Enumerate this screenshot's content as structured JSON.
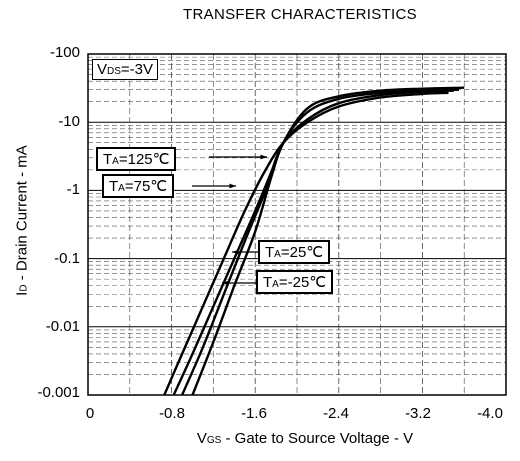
{
  "chart_data": {
    "type": "line",
    "title": "TRANSFER CHARACTERISTICS",
    "xlabel_prefix": "V",
    "xlabel_sub": "GS",
    "xlabel_rest": " - Gate to Source Voltage - V",
    "ylabel_prefix": "I",
    "ylabel_sub": "D",
    "ylabel_rest": " - Drain Current - mA",
    "condition_prefix": "V",
    "condition_sub": "DS",
    "condition_rest": "=-3V",
    "y_scale": "log",
    "xlim": [
      0,
      -4.0
    ],
    "ylim": [
      -0.001,
      -100
    ],
    "x_ticks": [
      "0",
      "-0.8",
      "-1.6",
      "-2.4",
      "-3.2",
      "-4.0"
    ],
    "y_ticks": [
      "-100",
      "-10",
      "-1",
      "-0.1",
      "-0.01",
      "-0.001"
    ],
    "grid": true,
    "series": [
      {
        "name": "TA=125℃",
        "label_prefix": "T",
        "label_sub": "A",
        "label_rest": "=125℃",
        "x": [
          -0.73,
          -0.9,
          -1.1,
          -1.3,
          -1.5,
          -1.7,
          -1.87,
          -2.1,
          -2.4,
          -2.8,
          -3.2,
          -3.45
        ],
        "y": [
          -0.001,
          -0.004,
          -0.02,
          -0.1,
          -0.5,
          -2.0,
          -5.0,
          -10.0,
          -17.0,
          -23.0,
          -26.0,
          -27.0
        ]
      },
      {
        "name": "TA=75℃",
        "label_prefix": "T",
        "label_sub": "A",
        "label_rest": "=75℃",
        "x": [
          -0.82,
          -1.0,
          -1.2,
          -1.4,
          -1.6,
          -1.75,
          -1.87,
          -2.1,
          -2.4,
          -2.8,
          -3.2,
          -3.5
        ],
        "y": [
          -0.001,
          -0.004,
          -0.02,
          -0.1,
          -0.5,
          -1.8,
          -5.0,
          -11.0,
          -19.0,
          -25.0,
          -28.0,
          -29.0
        ]
      },
      {
        "name": "TA=25℃",
        "label_prefix": "T",
        "label_sub": "A",
        "label_rest": "=25℃",
        "x": [
          -0.9,
          -1.1,
          -1.3,
          -1.5,
          -1.7,
          -1.87,
          -2.1,
          -2.4,
          -2.8,
          -3.2,
          -3.55
        ],
        "y": [
          -0.001,
          -0.005,
          -0.03,
          -0.18,
          -1.0,
          -5.0,
          -14.0,
          -22.0,
          -27.0,
          -29.0,
          -30.0
        ]
      },
      {
        "name": "TA=-25℃",
        "label_prefix": "T",
        "label_sub": "A",
        "label_rest": "=-25℃",
        "x": [
          -1.0,
          -1.2,
          -1.4,
          -1.6,
          -1.75,
          -1.87,
          -2.1,
          -2.4,
          -2.8,
          -3.2,
          -3.6
        ],
        "y": [
          -0.001,
          -0.006,
          -0.04,
          -0.25,
          -1.5,
          -5.0,
          -16.0,
          -24.0,
          -29.0,
          -31.0,
          -32.0
        ]
      }
    ]
  }
}
